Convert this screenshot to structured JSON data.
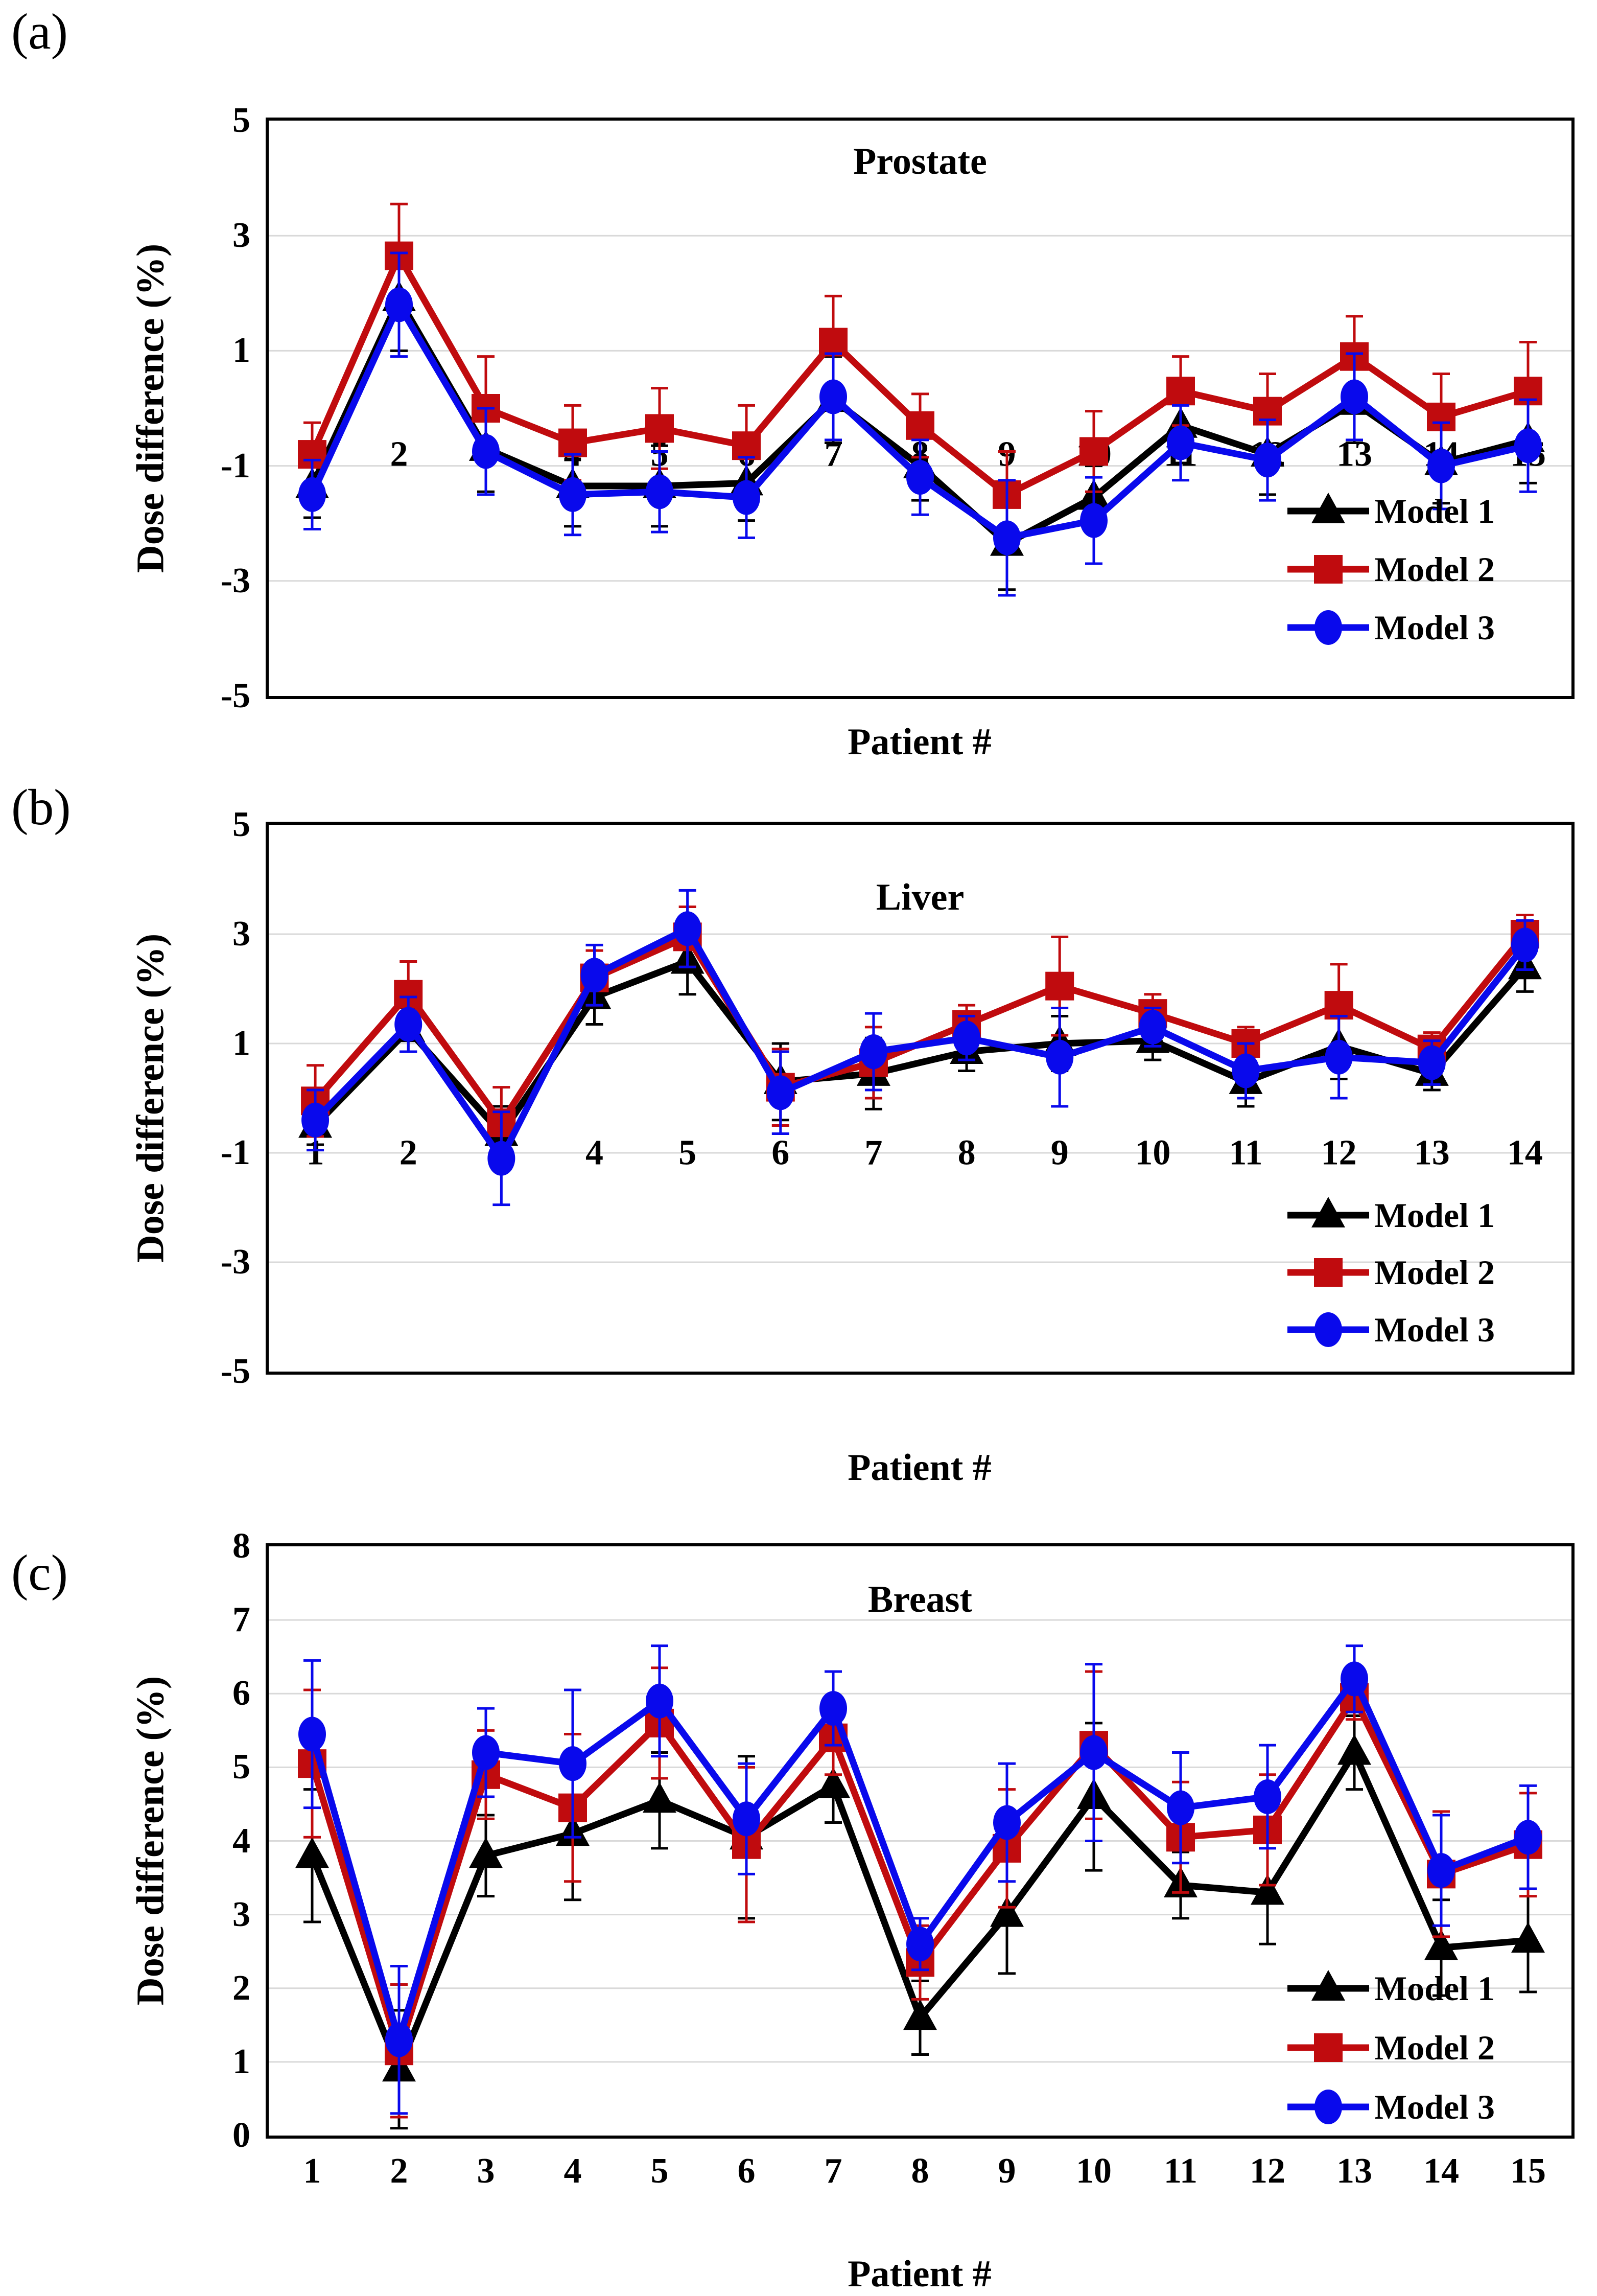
{
  "figure_caption_labels": [
    "(a)",
    "(b)",
    "(c)"
  ],
  "chart_data": [
    {
      "type": "line",
      "panel_label": "(a)",
      "title": "Prostate",
      "xlabel": "Patient #",
      "ylabel": "Dose difference (%)",
      "categories": [
        "1",
        "2",
        "3",
        "4",
        "5",
        "6",
        "7",
        "8",
        "9",
        "10",
        "11",
        "12",
        "13",
        "14",
        "15"
      ],
      "ylim": [
        -5,
        5
      ],
      "y_ticks": [
        5,
        3,
        1,
        -1,
        -3,
        -5
      ],
      "grid_ticks": [
        3,
        1,
        -1,
        -3
      ],
      "grid_color": "#d9d9d9",
      "x_tick_placement": "inside",
      "x_labels_y": -0.8,
      "legend_position": "bottom-right",
      "series": [
        {
          "name": "Model 1",
          "color": "#000000",
          "marker": "triangle",
          "values": [
            -1.35,
            1.9,
            -0.7,
            -1.35,
            -1.35,
            -1.3,
            0.15,
            -1.0,
            -2.35,
            -1.55,
            -0.3,
            -0.8,
            0.1,
            -0.95,
            -0.55
          ],
          "errors": [
            0.55,
            0.9,
            0.75,
            0.7,
            0.7,
            0.65,
            0.75,
            0.6,
            0.8,
            0.55,
            0.65,
            0.7,
            0.7,
            0.7,
            0.75
          ]
        },
        {
          "name": "Model 2",
          "color": "#c00b0e",
          "marker": "square",
          "values": [
            -0.8,
            2.65,
            0.0,
            -0.6,
            -0.35,
            -0.65,
            1.15,
            -0.3,
            -1.5,
            -0.75,
            0.3,
            -0.05,
            0.9,
            -0.15,
            0.3
          ],
          "errors": [
            0.55,
            0.9,
            0.9,
            0.65,
            0.7,
            0.7,
            0.8,
            0.55,
            0.75,
            0.7,
            0.6,
            0.65,
            0.7,
            0.75,
            0.85
          ]
        },
        {
          "name": "Model 3",
          "color": "#0909ec",
          "marker": "circle",
          "values": [
            -1.5,
            1.8,
            -0.75,
            -1.5,
            -1.45,
            -1.55,
            0.2,
            -1.2,
            -2.25,
            -1.95,
            -0.6,
            -0.9,
            0.2,
            -1.0,
            -0.65
          ],
          "errors": [
            0.6,
            0.9,
            0.75,
            0.7,
            0.7,
            0.7,
            0.75,
            0.65,
            1.0,
            0.75,
            0.65,
            0.7,
            0.75,
            0.75,
            0.8
          ]
        }
      ]
    },
    {
      "type": "line",
      "panel_label": "(b)",
      "title": "Liver",
      "xlabel": "Patient #",
      "ylabel": "Dose difference (%)",
      "categories": [
        "1",
        "2",
        "3",
        "4",
        "5",
        "6",
        "7",
        "8",
        "9",
        "10",
        "11",
        "12",
        "13",
        "14"
      ],
      "ylim": [
        -5,
        5
      ],
      "y_ticks": [
        5,
        3,
        1,
        -1,
        -3,
        -5
      ],
      "grid_ticks": [
        3,
        1,
        -1,
        -3
      ],
      "grid_color": "#d9d9d9",
      "x_tick_placement": "inside",
      "x_labels_y": -1.0,
      "legend_position": "bottom-right",
      "series": [
        {
          "name": "Model 1",
          "color": "#000000",
          "marker": "triangle",
          "values": [
            -0.5,
            1.25,
            -0.65,
            1.85,
            2.5,
            0.3,
            0.45,
            0.85,
            1.0,
            1.05,
            0.3,
            0.95,
            0.45,
            2.4
          ],
          "errors": [
            0.35,
            0.4,
            0.5,
            0.5,
            0.6,
            0.7,
            0.65,
            0.35,
            0.5,
            0.35,
            0.45,
            0.6,
            0.3,
            0.45
          ]
        },
        {
          "name": "Model 2",
          "color": "#c00b0e",
          "marker": "square",
          "values": [
            -0.05,
            1.9,
            -0.45,
            2.2,
            2.95,
            0.2,
            0.65,
            1.35,
            2.05,
            1.55,
            1.0,
            1.7,
            0.9,
            3.0
          ],
          "errors": [
            0.65,
            0.6,
            0.65,
            0.5,
            0.55,
            0.7,
            0.65,
            0.35,
            0.9,
            0.35,
            0.3,
            0.75,
            0.3,
            0.35
          ]
        },
        {
          "name": "Model 3",
          "color": "#0909ec",
          "marker": "circle",
          "values": [
            -0.4,
            1.35,
            -1.1,
            2.25,
            3.1,
            0.1,
            0.85,
            1.1,
            0.75,
            1.3,
            0.5,
            0.75,
            0.65,
            2.8
          ],
          "errors": [
            0.55,
            0.5,
            0.85,
            0.55,
            0.7,
            0.75,
            0.7,
            0.4,
            0.9,
            0.35,
            0.5,
            0.75,
            0.4,
            0.45
          ]
        }
      ]
    },
    {
      "type": "line",
      "panel_label": "(c)",
      "title": "Breast",
      "xlabel": "Patient #",
      "ylabel": "Dose difference (%)",
      "categories": [
        "1",
        "2",
        "3",
        "4",
        "5",
        "6",
        "7",
        "8",
        "9",
        "10",
        "11",
        "12",
        "13",
        "14",
        "15"
      ],
      "ylim": [
        0,
        8
      ],
      "y_ticks": [
        8,
        7,
        6,
        5,
        4,
        3,
        2,
        1,
        0
      ],
      "grid_ticks": [
        7,
        6,
        5,
        4,
        3,
        2,
        1
      ],
      "grid_color": "#d9d9d9",
      "x_tick_placement": "outside",
      "x_labels_y": null,
      "legend_position": "bottom-right",
      "series": [
        {
          "name": "Model 1",
          "color": "#000000",
          "marker": "triangle",
          "values": [
            3.8,
            0.9,
            3.8,
            4.1,
            4.55,
            4.05,
            4.75,
            1.6,
            3.0,
            4.6,
            3.4,
            3.3,
            5.2,
            2.55,
            2.65
          ],
          "errors": [
            0.9,
            0.8,
            0.55,
            0.9,
            0.65,
            1.1,
            0.5,
            0.5,
            0.8,
            1.0,
            0.45,
            0.7,
            0.5,
            0.65,
            0.7
          ]
        },
        {
          "name": "Model 2",
          "color": "#c00b0e",
          "marker": "square",
          "values": [
            5.05,
            1.15,
            4.9,
            4.45,
            5.6,
            3.95,
            5.4,
            2.35,
            3.9,
            5.3,
            4.05,
            4.15,
            5.95,
            3.55,
            3.95
          ],
          "errors": [
            1.0,
            0.9,
            0.6,
            1.0,
            0.75,
            1.05,
            0.5,
            0.5,
            0.8,
            1.0,
            0.75,
            0.75,
            0.3,
            0.85,
            0.7
          ]
        },
        {
          "name": "Model 3",
          "color": "#0909ec",
          "marker": "circle",
          "values": [
            5.45,
            1.3,
            5.2,
            5.05,
            5.9,
            4.3,
            5.8,
            2.6,
            4.25,
            5.2,
            4.45,
            4.6,
            6.2,
            3.6,
            4.05
          ],
          "errors": [
            1.0,
            1.0,
            0.6,
            1.0,
            0.75,
            0.75,
            0.5,
            0.35,
            0.8,
            1.2,
            0.75,
            0.7,
            0.45,
            0.75,
            0.7
          ]
        }
      ]
    }
  ]
}
